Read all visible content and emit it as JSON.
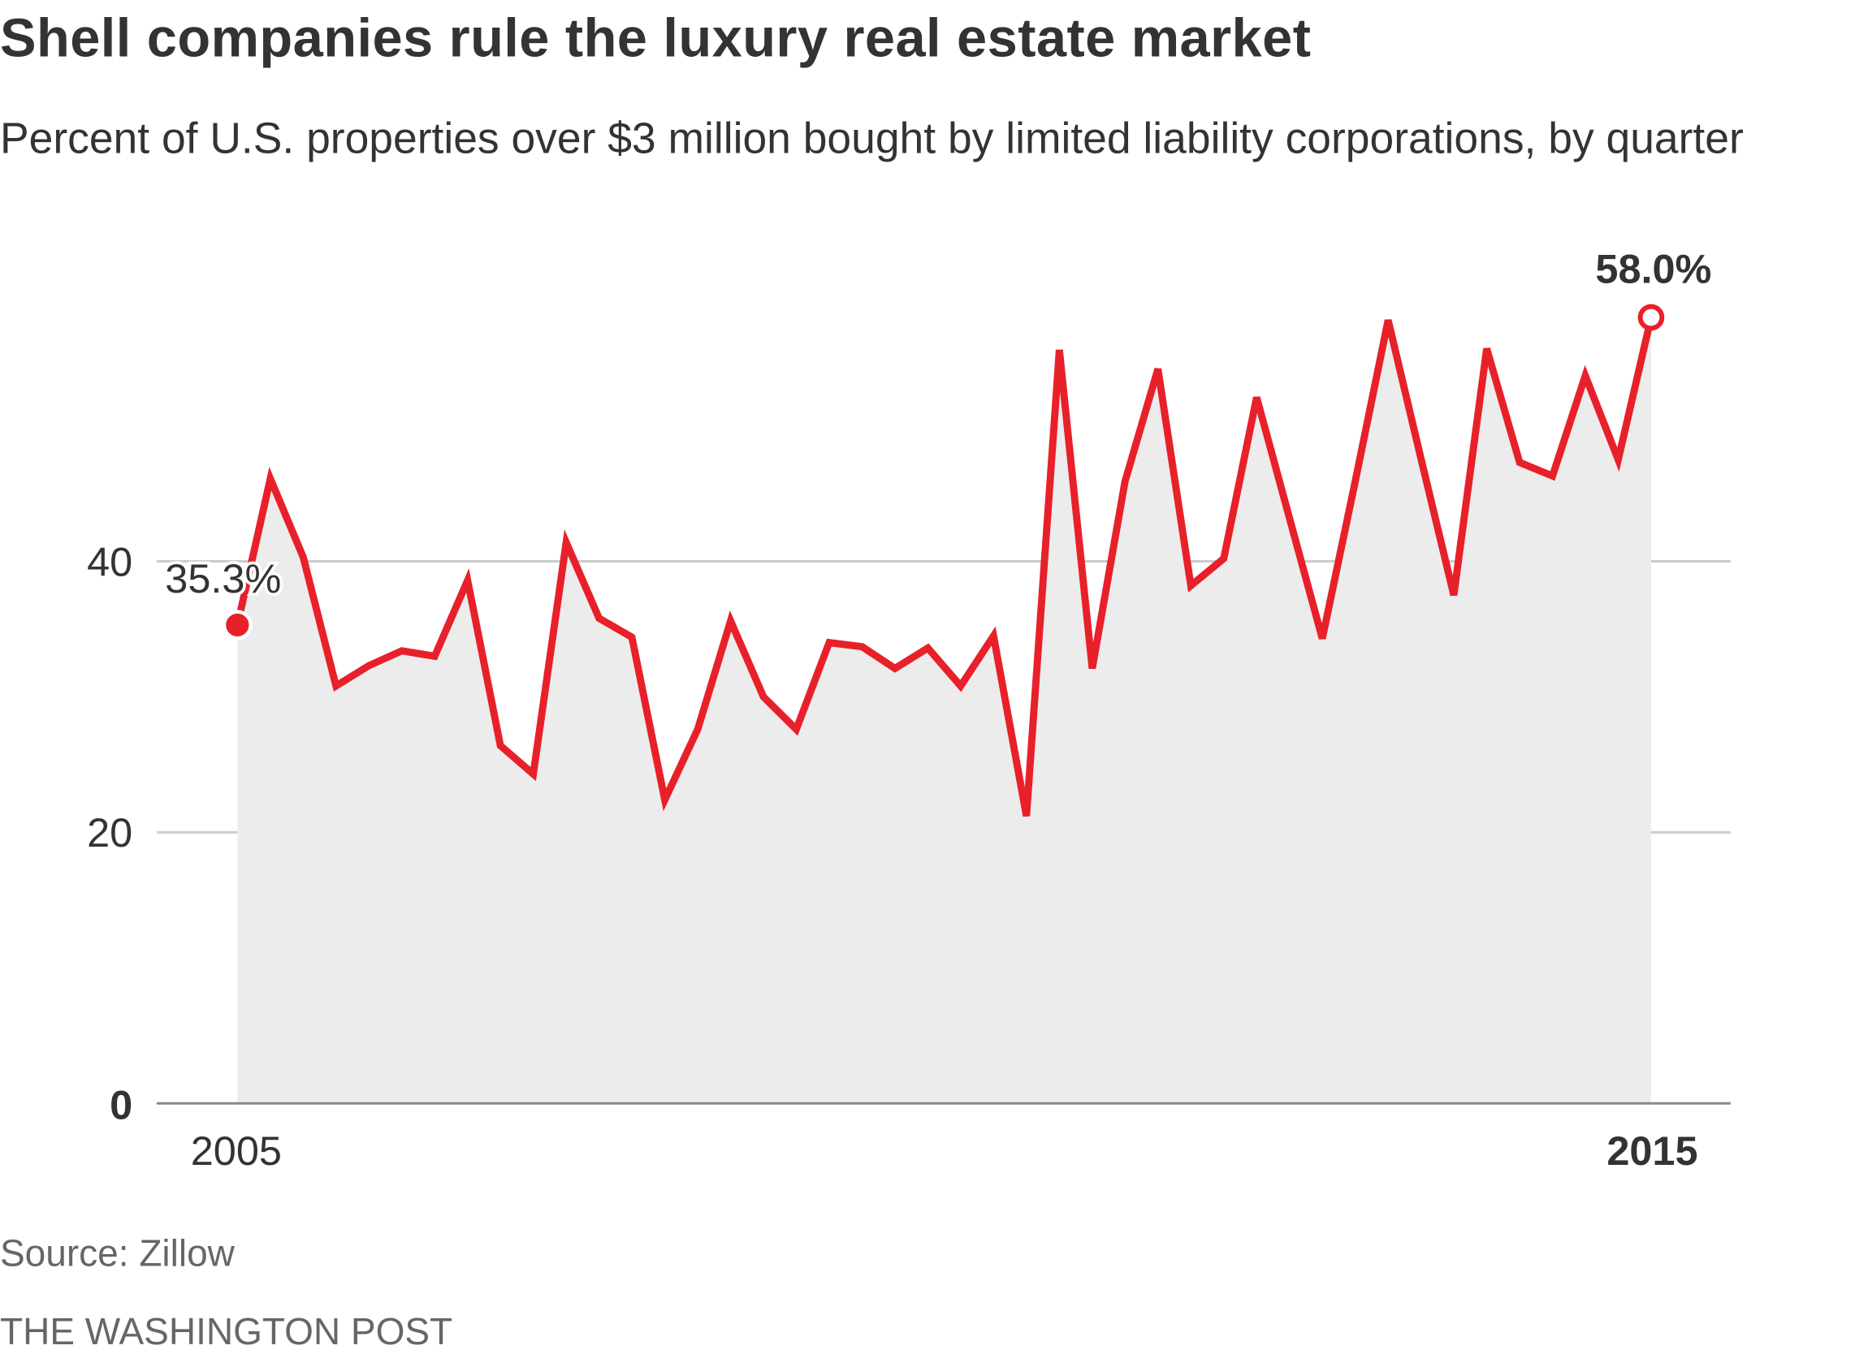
{
  "chart_data": {
    "type": "area",
    "title": "Shell companies rule the luxury real estate market",
    "subtitle": "Percent of U.S. properties over $3 million bought by limited liability corporations, by quarter",
    "xlabel": "",
    "ylabel": "",
    "x_tick_labels": [
      "2005",
      "2015"
    ],
    "y_ticks": [
      0,
      20,
      40
    ],
    "y_tick_labels": [
      "0",
      "20",
      "40"
    ],
    "ylim": [
      0,
      60
    ],
    "grid": true,
    "line_color": "#e8202a",
    "fill_color": "#ececec",
    "series": [
      {
        "values": [
          35.3,
          46.1,
          40.3,
          30.8,
          32.3,
          33.4,
          33.0,
          38.6,
          26.4,
          24.3,
          41.4,
          35.8,
          34.4,
          22.4,
          27.6,
          35.6,
          30.0,
          27.6,
          34.0,
          33.7,
          32.1,
          33.6,
          30.8,
          34.5,
          21.2,
          55.6,
          32.1,
          45.9,
          54.2,
          38.2,
          40.2,
          52.1,
          43.2,
          34.3,
          45.9,
          57.8,
          47.6,
          37.5,
          55.7,
          47.3,
          46.3,
          53.7,
          47.5,
          58.0
        ]
      }
    ],
    "annotations": [
      {
        "label": "35.3%",
        "point": "first"
      },
      {
        "label": "58.0%",
        "point": "last"
      }
    ]
  },
  "source": "Source: Zillow",
  "credit": "THE WASHINGTON POST"
}
